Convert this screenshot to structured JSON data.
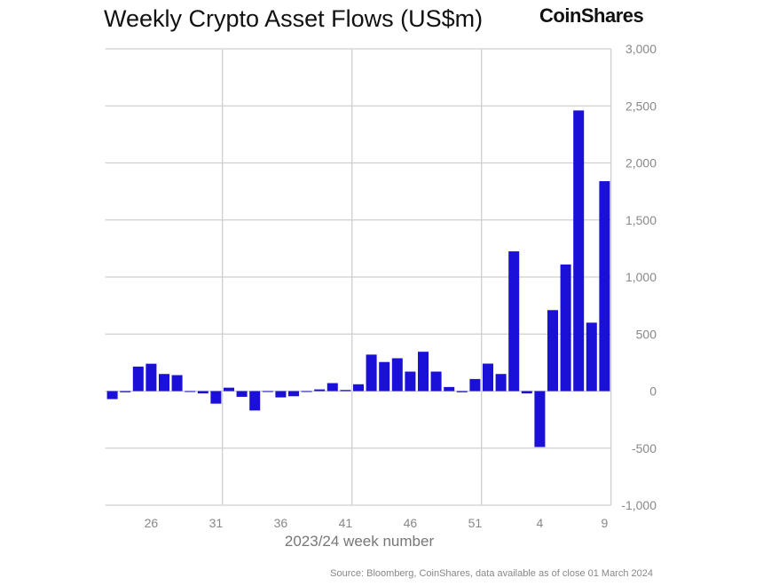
{
  "header": {
    "title": "Weekly Crypto Asset Flows (US$m)",
    "logo": "CoinShares"
  },
  "footer": {
    "source": "Source: Bloomberg, CoinShares, data available as of close 01 March 2024"
  },
  "chart_data": {
    "type": "bar",
    "title": "Weekly Crypto Asset Flows (US$m)",
    "xlabel": "2023/24 week number",
    "ylabel": "",
    "ylim": [
      -1000,
      3000
    ],
    "yticks": [
      -1000,
      -500,
      0,
      500,
      1000,
      1500,
      2000,
      2500,
      3000
    ],
    "ytick_labels": [
      "-1,000",
      "-500",
      "0",
      "500",
      "1,000",
      "1,500",
      "2,000",
      "2,500",
      "3,000"
    ],
    "xtick_labels": [
      "26",
      "31",
      "36",
      "41",
      "46",
      "51",
      "4",
      "9"
    ],
    "categories": [
      "23",
      "24",
      "25",
      "26",
      "27",
      "28",
      "29",
      "30",
      "31",
      "32",
      "33",
      "34",
      "35",
      "36",
      "37",
      "38",
      "39",
      "40",
      "41",
      "42",
      "43",
      "44",
      "45",
      "46",
      "47",
      "48",
      "49",
      "50",
      "51",
      "52",
      "1",
      "2",
      "3",
      "4",
      "5",
      "6",
      "7",
      "8",
      "9"
    ],
    "values": [
      -70,
      -10,
      215,
      240,
      150,
      140,
      0,
      -20,
      -110,
      30,
      -50,
      -170,
      0,
      -55,
      -45,
      -5,
      15,
      70,
      10,
      60,
      320,
      255,
      288,
      171,
      345,
      171,
      36,
      -10,
      106,
      241,
      150,
      1225,
      -20,
      -490,
      710,
      1110,
      2460,
      600,
      1840
    ],
    "color": "#1a10d8",
    "grid": true,
    "yaxis_position": "right"
  }
}
